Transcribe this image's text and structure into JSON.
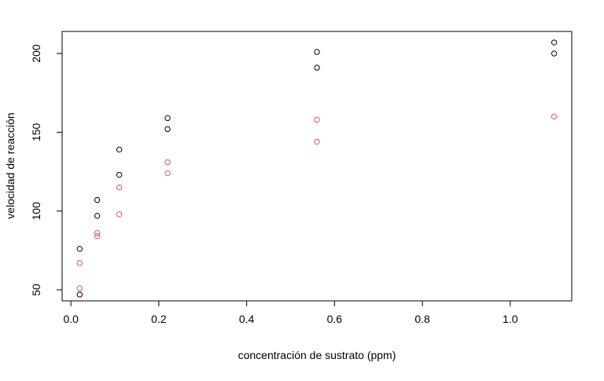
{
  "chart_data": {
    "type": "scatter",
    "title": "",
    "xlabel": "concentración de sustrato (ppm)",
    "ylabel": "velocidad de reacción",
    "xlim": [
      -0.02,
      1.14
    ],
    "ylim": [
      43,
      214
    ],
    "xticks": [
      0.0,
      0.2,
      0.4,
      0.6,
      0.8,
      1.0
    ],
    "xtick_labels": [
      "0.0",
      "0.2",
      "0.4",
      "0.6",
      "0.8",
      "1.0"
    ],
    "yticks": [
      50,
      100,
      150,
      200
    ],
    "ytick_labels": [
      "50",
      "100",
      "150",
      "200"
    ],
    "grid": false,
    "legend": "none",
    "marker": "open-circle",
    "series": [
      {
        "color": "#000000",
        "x": [
          0.02,
          0.02,
          0.06,
          0.06,
          0.11,
          0.11,
          0.22,
          0.22,
          0.56,
          0.56,
          1.1,
          1.1
        ],
        "y": [
          76,
          47,
          97,
          107,
          123,
          139,
          159,
          152,
          191,
          201,
          207,
          200
        ]
      },
      {
        "color": "#DF536B",
        "x": [
          0.02,
          0.02,
          0.06,
          0.06,
          0.11,
          0.11,
          0.22,
          0.22,
          0.56,
          0.56,
          1.1
        ],
        "y": [
          67,
          51,
          84,
          86,
          98,
          115,
          131,
          124,
          144,
          158,
          160
        ]
      }
    ]
  }
}
